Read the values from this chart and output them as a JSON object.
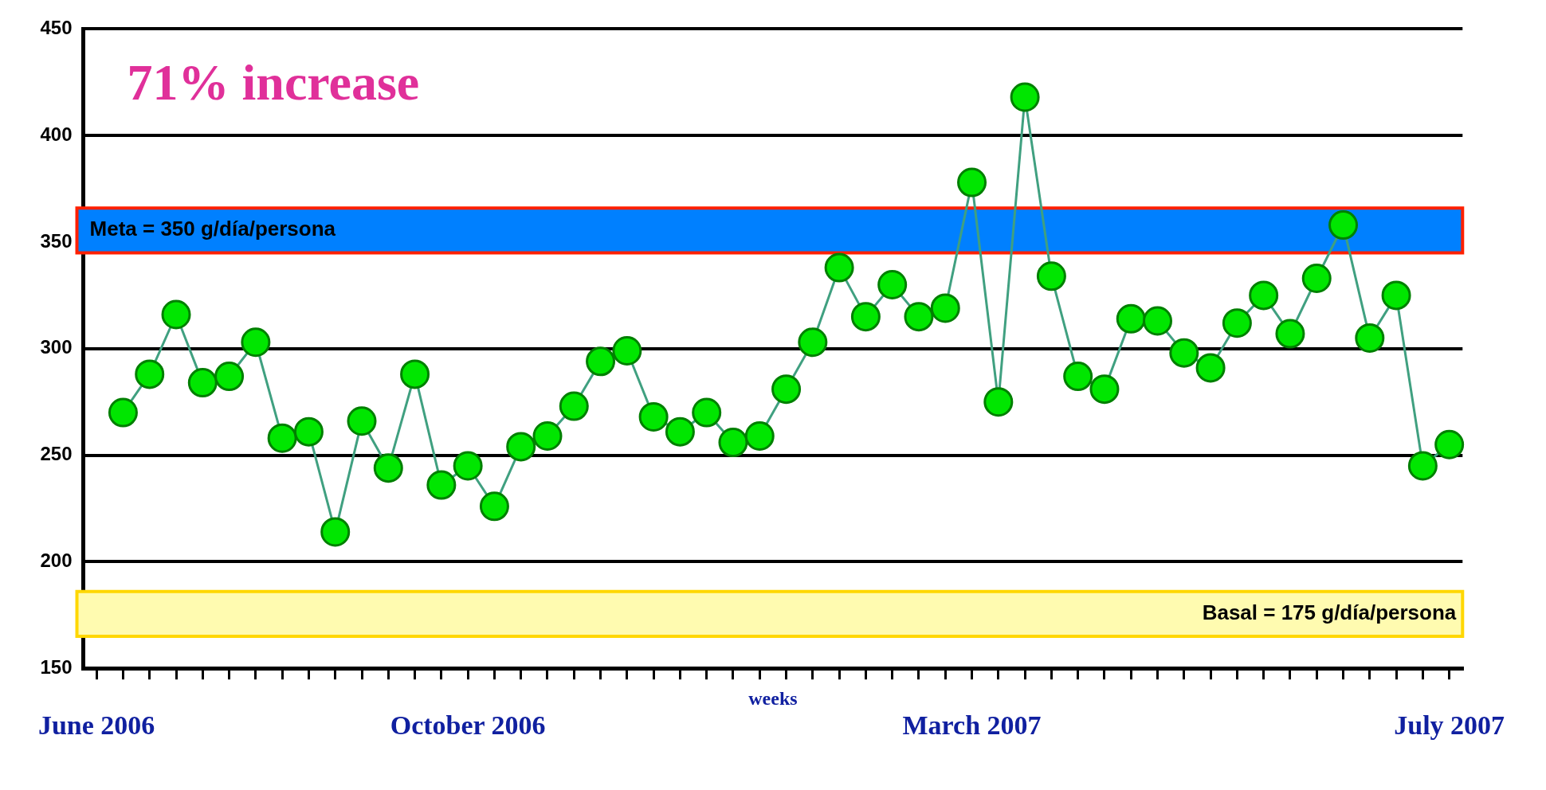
{
  "chart_data": {
    "type": "line",
    "xlabel": "weeks",
    "annotations": [
      "71% increase"
    ],
    "categories": [
      "June 2006",
      null,
      null,
      null,
      null,
      null,
      null,
      null,
      null,
      null,
      null,
      null,
      null,
      null,
      "October 2006",
      null,
      null,
      null,
      null,
      null,
      null,
      null,
      null,
      null,
      null,
      null,
      null,
      null,
      null,
      null,
      null,
      null,
      null,
      "March 2007",
      null,
      null,
      null,
      null,
      null,
      null,
      null,
      null,
      null,
      null,
      null,
      null,
      null,
      null,
      null,
      null,
      null,
      "July 2007"
    ],
    "series": [
      {
        "color": "#00e600",
        "values": [
          null,
          270,
          288,
          316,
          284,
          287,
          303,
          258,
          261,
          214,
          266,
          244,
          288,
          236,
          245,
          226,
          254,
          259,
          273,
          294,
          299,
          268,
          261,
          270,
          256,
          259,
          281,
          303,
          338,
          315,
          330,
          315,
          319,
          378,
          275,
          418,
          334,
          287,
          281,
          314,
          313,
          298,
          291,
          312,
          325,
          307,
          333,
          358,
          305,
          325,
          245,
          255
        ]
      }
    ],
    "ylim": [
      150,
      450
    ],
    "yticks": [
      150,
      200,
      250,
      300,
      350,
      400,
      450
    ],
    "grid": "y",
    "legend": false,
    "marker": "circle",
    "line_style": "solid",
    "bands": [
      {
        "axis": "y",
        "from": 345,
        "to": 366,
        "label": "Meta = 350 g/día/persona",
        "color": "#0080ff"
      },
      {
        "axis": "y",
        "from": 165,
        "to": 186,
        "label": "Basal = 175 g/día/persona",
        "color": "#fffbb0"
      }
    ]
  }
}
